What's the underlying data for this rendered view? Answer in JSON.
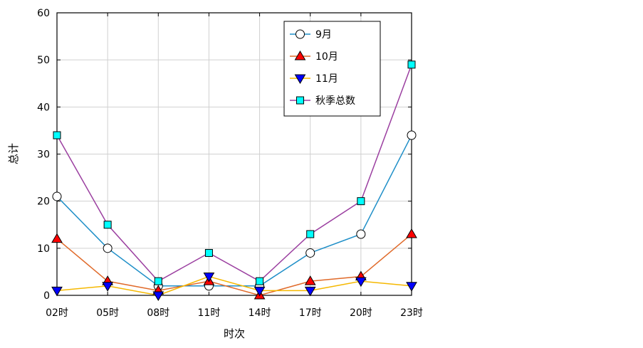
{
  "chart_data": {
    "type": "line",
    "title": "",
    "xlabel": "时次",
    "ylabel": "总计",
    "categories": [
      "02时",
      "05时",
      "08时",
      "11时",
      "14时",
      "17时",
      "20时",
      "23时"
    ],
    "ylim": [
      0,
      60
    ],
    "yticks": [
      "0",
      "10",
      "20",
      "30",
      "40",
      "50",
      "60"
    ],
    "grid": true,
    "legend_position": "top-right",
    "series": [
      {
        "name": "9月",
        "values": [
          21,
          10,
          2,
          2,
          2,
          9,
          13,
          34
        ],
        "color": "#1f8fc8",
        "marker": "circle",
        "marker_fill": "#ffffff"
      },
      {
        "name": "10月",
        "values": [
          12,
          3,
          1,
          3,
          0,
          3,
          4,
          13
        ],
        "color": "#e06a2a",
        "marker": "triangle-up",
        "marker_fill": "#ff0000"
      },
      {
        "name": "11月",
        "values": [
          1,
          2,
          0,
          4,
          1,
          1,
          3,
          2
        ],
        "color": "#f5b800",
        "marker": "triangle-down",
        "marker_fill": "#0000ff"
      },
      {
        "name": "秋季总数",
        "values": [
          34,
          15,
          3,
          9,
          3,
          13,
          20,
          49
        ],
        "color": "#9b3fa0",
        "marker": "square",
        "marker_fill": "#00ffff"
      }
    ]
  }
}
